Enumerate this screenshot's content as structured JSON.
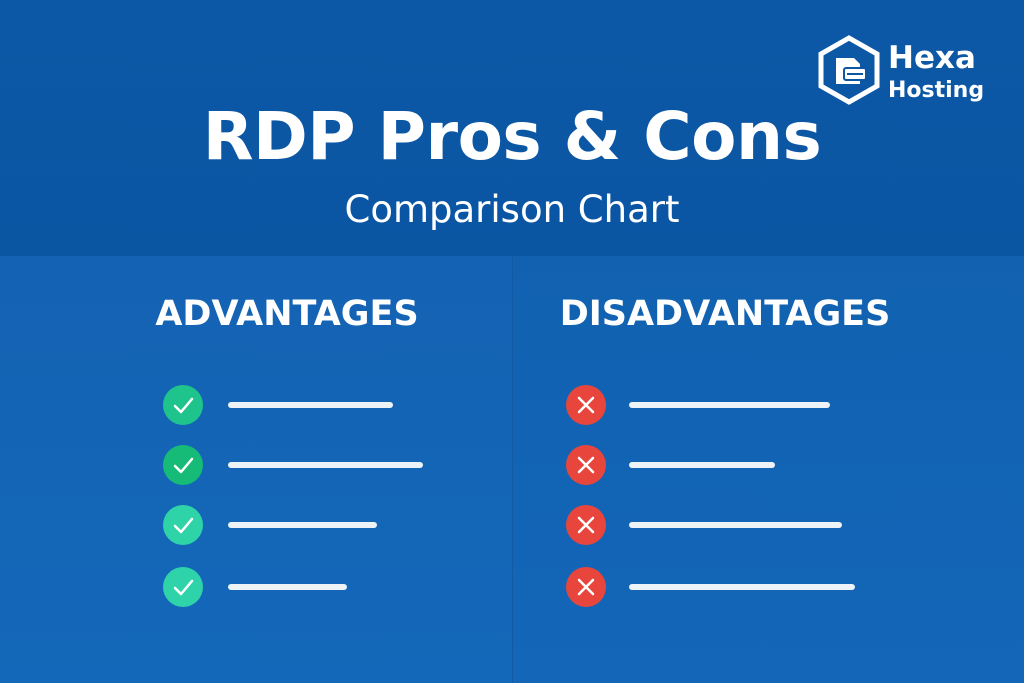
{
  "header": {
    "title": "RDP Pros & Cons",
    "subtitle": "Comparison Chart"
  },
  "logo": {
    "line1": "Hexa",
    "line2": "Hosting"
  },
  "advantages": {
    "title": "ADVANTAGES",
    "icon": "check-icon",
    "item_count": 4,
    "colors": [
      "#1fc48c",
      "#17bb78",
      "#2fd3a8",
      "#2fd3aa"
    ]
  },
  "disadvantages": {
    "title": "DISADVANTAGES",
    "icon": "x-icon",
    "item_count": 4,
    "color": "#e8463d"
  },
  "colors": {
    "header_bg": "#0b57a5",
    "panel_bg": "#1465b6",
    "text": "#ffffff"
  }
}
